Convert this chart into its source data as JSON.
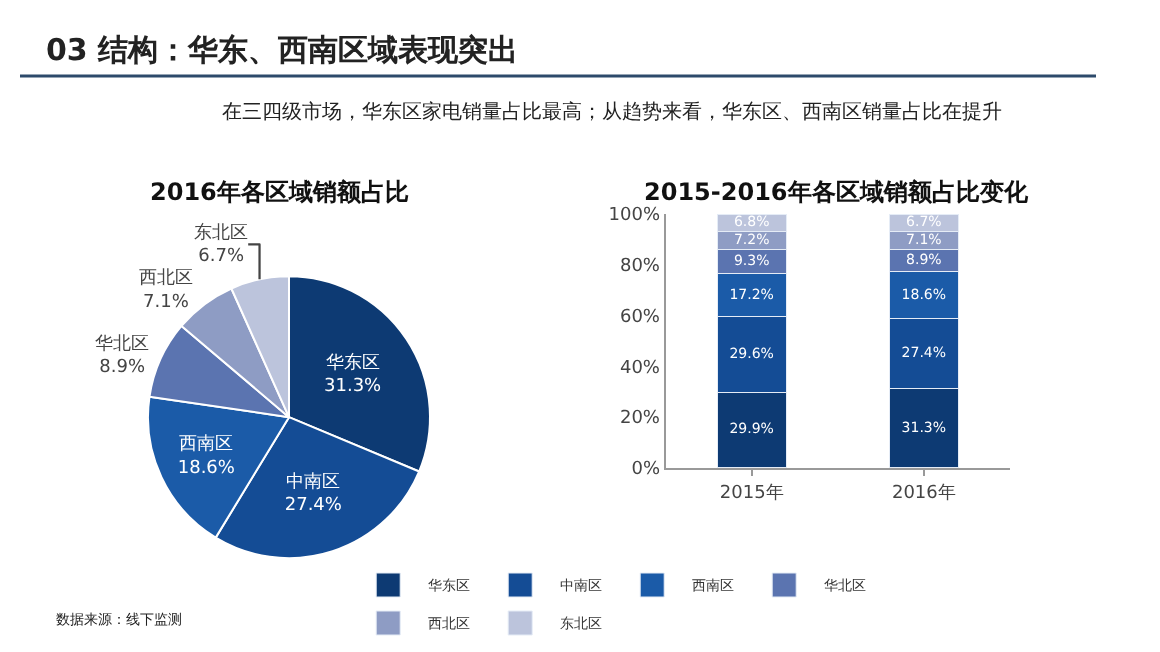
{
  "chart_data": [
    {
      "type": "pie",
      "title": "2016年各区域销额占比",
      "annotations": [
        "03 结构：华东、西南区域表现突出",
        "在三四级市场，华东区家电销量占比最高；从趋势来看，华东区、西南区销量占比在提升",
        "数据来源：线下监测"
      ],
      "categories": [
        "华东区",
        "中南区",
        "西南区",
        "华北区",
        "西北区",
        "东北区"
      ],
      "values": [
        31.3,
        27.4,
        18.6,
        8.9,
        7.1,
        6.7
      ],
      "colors": [
        "#0d3a73",
        "#144c95",
        "#1b5ba8",
        "#5b74b0",
        "#8e9cc4",
        "#bcc4dc"
      ],
      "value_labels": [
        "31.3%",
        "27.4%",
        "18.6%",
        "8.9%",
        "7.1%",
        "6.7%"
      ],
      "legend": false
    },
    {
      "type": "bar",
      "stacked": true,
      "title": "2015-2016年各区域销额占比变化",
      "categories": [
        "2015年",
        "2016年"
      ],
      "series": [
        {
          "name": "华东区",
          "color": "#0d3a73",
          "values": [
            29.9,
            31.3
          ],
          "value_labels": [
            "29.9%",
            "31.3%"
          ]
        },
        {
          "name": "中南区",
          "color": "#144c95",
          "values": [
            29.6,
            27.4
          ],
          "value_labels": [
            "29.6%",
            "27.4%"
          ]
        },
        {
          "name": "西南区",
          "color": "#1b5ba8",
          "values": [
            17.2,
            18.6
          ],
          "value_labels": [
            "17.2%",
            "18.6%"
          ]
        },
        {
          "name": "华北区",
          "color": "#5b74b0",
          "values": [
            9.3,
            8.9
          ],
          "value_labels": [
            "9.3%",
            "8.9%"
          ]
        },
        {
          "name": "西北区",
          "color": "#8e9cc4",
          "values": [
            7.2,
            7.1
          ],
          "value_labels": [
            "7.2%",
            "7.1%"
          ]
        },
        {
          "name": "东北区",
          "color": "#bcc4dc",
          "values": [
            6.8,
            6.7
          ],
          "value_labels": [
            "6.8%",
            "6.7%"
          ]
        }
      ],
      "ylim": [
        0,
        100
      ],
      "yticks": [
        {
          "value": 0,
          "label": "0%"
        },
        {
          "value": 20,
          "label": "20%"
        },
        {
          "value": 40,
          "label": "40%"
        },
        {
          "value": 60,
          "label": "60%"
        },
        {
          "value": 80,
          "label": "80%"
        },
        {
          "value": 100,
          "label": "100%"
        }
      ],
      "grid": false,
      "legend": "bottom"
    }
  ]
}
